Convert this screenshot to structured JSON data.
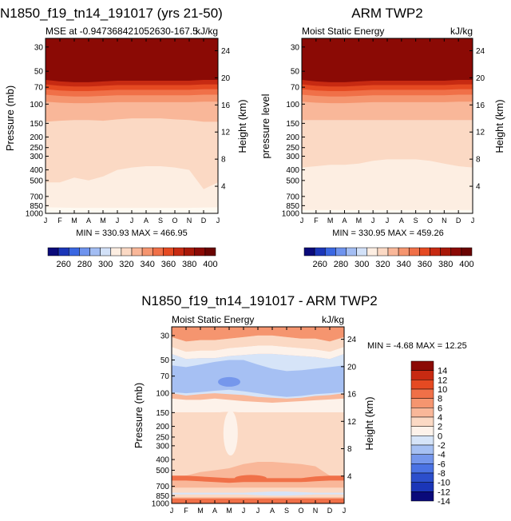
{
  "colors": {
    "contour_levels": [
      {
        "max": 330,
        "color": "#fefaf2"
      },
      {
        "max": 340,
        "color": "#fdeee2"
      },
      {
        "max": 350,
        "color": "#fbd9c4"
      },
      {
        "max": 355,
        "color": "#f9b799"
      },
      {
        "max": 360,
        "color": "#f5956f"
      },
      {
        "max": 365,
        "color": "#f07048"
      },
      {
        "max": 370,
        "color": "#e54a22"
      },
      {
        "max": 380,
        "color": "#c72a12"
      },
      {
        "max": 999,
        "color": "#8b0a05"
      }
    ],
    "mse_scale": [
      "#0a0a7a",
      "#1b36b8",
      "#3a67e2",
      "#6e93ee",
      "#a3bdf3",
      "#d2e1f8",
      "#fdeee2",
      "#fbd9c4",
      "#f9b799",
      "#f5956f",
      "#f07048",
      "#e54a22",
      "#c72a12",
      "#a81808",
      "#8b0a05",
      "#6a0402"
    ],
    "diff_scale": [
      "#0a0a7a",
      "#1b36b8",
      "#2c4fcc",
      "#4b73e4",
      "#7597ec",
      "#a6c0f3",
      "#d6e4f8",
      "#fdf2ea",
      "#fbd9c4",
      "#f9b799",
      "#f5956f",
      "#f07048",
      "#e54a22",
      "#c72a12",
      "#8b0a05"
    ]
  },
  "chart_data": [
    {
      "type": "heatmap",
      "panel": "top-left",
      "title": "N1850_f19_tn14_191017 (yrs 21-50)",
      "subtitle_left": "MSE at -0.947368421052630-167.5",
      "subtitle_right": "kJ/kg",
      "ylabel": "Pressure (mb)",
      "ylabel_right": "Height (km)",
      "x": [
        "J",
        "F",
        "M",
        "A",
        "M",
        "J",
        "J",
        "A",
        "S",
        "O",
        "N",
        "D",
        "J"
      ],
      "y_ticks": [
        30,
        50,
        70,
        100,
        150,
        200,
        250,
        300,
        400,
        500,
        700,
        850,
        1000
      ],
      "right_ticks": [
        24,
        20,
        16,
        12,
        8,
        4
      ],
      "ylim": [
        25,
        1000
      ],
      "stats": "MIN =  330.93  MAX =  466.95",
      "colorbar_labels": [
        "260",
        "280",
        "300",
        "320",
        "340",
        "360",
        "380",
        "400"
      ],
      "boundaries": [
        {
          "level": "above_380",
          "p": [
            60,
            62,
            63,
            63,
            62,
            61,
            61,
            61,
            61,
            61,
            61,
            60,
            60
          ]
        },
        {
          "level": "above_370",
          "p": [
            66,
            68,
            69,
            69,
            68,
            67,
            67,
            67,
            67,
            67,
            67,
            66,
            66
          ]
        },
        {
          "level": "above_365",
          "p": [
            73,
            75,
            76,
            76,
            75,
            74,
            74,
            74,
            74,
            74,
            74,
            73,
            73
          ]
        },
        {
          "level": "above_360",
          "p": [
            82,
            84,
            85,
            85,
            84,
            83,
            83,
            83,
            83,
            83,
            83,
            82,
            82
          ]
        },
        {
          "level": "above_355",
          "p": [
            95,
            97,
            98,
            98,
            97,
            96,
            96,
            96,
            96,
            96,
            96,
            95,
            95
          ]
        },
        {
          "level": "above_350",
          "p": [
            145,
            142,
            140,
            140,
            142,
            138,
            135,
            135,
            135,
            138,
            140,
            145,
            145
          ]
        },
        {
          "level": "above_340",
          "p": [
            520,
            520,
            470,
            500,
            460,
            400,
            380,
            370,
            370,
            380,
            400,
            600,
            520
          ]
        },
        {
          "level": "above_330",
          "p": [
            880,
            885,
            890,
            890,
            890,
            890,
            890,
            890,
            890,
            890,
            890,
            885,
            880
          ]
        }
      ]
    },
    {
      "type": "heatmap",
      "panel": "top-right",
      "title": "ARM TWP2",
      "subtitle_left": "Moist Static Energy",
      "subtitle_right": "kJ/kg",
      "ylabel": "pressure  level",
      "ylabel_right": "Height (km)",
      "x": [
        "J",
        "F",
        "M",
        "A",
        "M",
        "J",
        "J",
        "A",
        "S",
        "O",
        "N",
        "D",
        "J"
      ],
      "y_ticks": [
        30,
        50,
        70,
        100,
        150,
        200,
        250,
        300,
        400,
        500,
        700,
        850,
        1000
      ],
      "right_ticks": [
        24,
        20,
        16,
        12,
        8,
        4
      ],
      "ylim": [
        25,
        1000
      ],
      "stats": "MIN =  330.95  MAX =  459.26",
      "colorbar_labels": [
        "260",
        "280",
        "300",
        "320",
        "340",
        "360",
        "380",
        "400"
      ],
      "boundaries": [
        {
          "level": "above_380",
          "p": [
            60,
            62,
            63,
            63,
            62,
            61,
            61,
            61,
            61,
            61,
            61,
            60,
            60
          ]
        },
        {
          "level": "above_370",
          "p": [
            66,
            68,
            69,
            69,
            68,
            67,
            67,
            67,
            67,
            67,
            67,
            66,
            66
          ]
        },
        {
          "level": "above_365",
          "p": [
            73,
            75,
            76,
            76,
            75,
            74,
            74,
            74,
            74,
            74,
            74,
            73,
            73
          ]
        },
        {
          "level": "above_360",
          "p": [
            82,
            84,
            85,
            85,
            84,
            83,
            83,
            83,
            83,
            83,
            83,
            82,
            82
          ]
        },
        {
          "level": "above_355",
          "p": [
            95,
            97,
            98,
            98,
            97,
            96,
            96,
            96,
            96,
            96,
            96,
            95,
            95
          ]
        },
        {
          "level": "above_350",
          "p": [
            140,
            140,
            140,
            140,
            140,
            140,
            140,
            140,
            140,
            140,
            140,
            140,
            140
          ]
        },
        {
          "level": "above_340",
          "p": [
            380,
            370,
            360,
            360,
            350,
            330,
            320,
            320,
            320,
            330,
            350,
            370,
            380
          ]
        },
        {
          "level": "above_330",
          "p": [
            930,
            930,
            930,
            930,
            930,
            930,
            930,
            930,
            930,
            930,
            930,
            930,
            930
          ]
        }
      ]
    },
    {
      "type": "heatmap",
      "panel": "bottom-center",
      "title": "N1850_f19_tn14_191017 - ARM TWP2",
      "subtitle_left": "Moist Static Energy",
      "subtitle_right": "kJ/kg",
      "ylabel": "Pressure (mb)",
      "ylabel_right": "Height (km)",
      "x": [
        "J",
        "F",
        "M",
        "A",
        "M",
        "J",
        "J",
        "A",
        "S",
        "O",
        "N",
        "D",
        "J"
      ],
      "y_ticks": [
        30,
        50,
        70,
        100,
        150,
        200,
        250,
        300,
        400,
        500,
        700,
        850,
        1000
      ],
      "right_ticks": [
        24,
        20,
        16,
        12,
        8,
        4
      ],
      "ylim": [
        25,
        1000
      ],
      "stats": "MIN =   -4.68  MAX =   12.25",
      "colorbar_labels": [
        "14",
        "12",
        "10",
        "8",
        "6",
        "4",
        "2",
        "0",
        "-2",
        "-4",
        "-6",
        "-8",
        "-10",
        "-12",
        "-14"
      ],
      "base_color": "#f9b799",
      "regions": [
        {
          "level": "6_to_8",
          "p_top": [
            25,
            25,
            25,
            25,
            25,
            25,
            25,
            25,
            25,
            25,
            25,
            25,
            25
          ],
          "p_bot": [
            31,
            34,
            33,
            33,
            32,
            31,
            30,
            30,
            31,
            32,
            32,
            34,
            31
          ]
        },
        {
          "level": "2_to_4",
          "p_top": [
            31,
            34,
            33,
            33,
            32,
            31,
            30,
            30,
            31,
            32,
            32,
            34,
            31
          ],
          "p_bot": [
            38,
            42,
            41,
            41,
            39,
            38,
            37,
            37,
            38,
            39,
            40,
            42,
            38
          ]
        },
        {
          "level": "0_to_2",
          "p_top": [
            38,
            42,
            41,
            41,
            39,
            38,
            37,
            37,
            38,
            39,
            40,
            42,
            38
          ],
          "p_bot": [
            44,
            49,
            48,
            48,
            46,
            45,
            44,
            44,
            45,
            46,
            47,
            49,
            44
          ]
        },
        {
          "level": "-2_to_0",
          "p_top": [
            44,
            49,
            48,
            48,
            46,
            45,
            44,
            44,
            45,
            46,
            47,
            49,
            44
          ],
          "p_bot": [
            100,
            105,
            102,
            100,
            102,
            104,
            108,
            110,
            112,
            110,
            106,
            104,
            100
          ]
        },
        {
          "level": "-4_to_-2",
          "p_top": [
            56,
            58,
            55,
            52,
            50,
            50,
            55,
            60,
            63,
            62,
            60,
            58,
            56
          ],
          "p_bot": [
            98,
            100,
            98,
            95,
            93,
            96,
            100,
            105,
            108,
            106,
            102,
            100,
            98
          ]
        },
        {
          "level": "0_to_2",
          "p_top": [
            112,
            115,
            115,
            112,
            115,
            118,
            120,
            122,
            120,
            118,
            116,
            114,
            112
          ],
          "p_bot": [
            150,
            150,
            150,
            150,
            148,
            150,
            150,
            150,
            150,
            150,
            150,
            150,
            150
          ]
        },
        {
          "level": "2_to_4",
          "p_top": [
            150,
            150,
            150,
            150,
            148,
            150,
            150,
            150,
            150,
            150,
            150,
            150,
            150
          ],
          "p_bot": [
            580,
            560,
            520,
            500,
            480,
            440,
            420,
            420,
            430,
            440,
            460,
            560,
            580
          ]
        },
        {
          "level": "8_to_10",
          "p_top": [
            560,
            560,
            570,
            580,
            590,
            590,
            590,
            590,
            590,
            590,
            570,
            560,
            560
          ],
          "p_bot": [
            620,
            620,
            630,
            640,
            650,
            640,
            640,
            640,
            640,
            640,
            630,
            620,
            620
          ]
        },
        {
          "level": "2_to_4",
          "p_top": [
            720,
            720,
            720,
            720,
            720,
            720,
            720,
            720,
            720,
            720,
            720,
            720,
            720
          ],
          "p_bot": [
            880,
            880,
            880,
            880,
            880,
            880,
            880,
            880,
            880,
            880,
            880,
            880,
            880
          ]
        },
        {
          "level": "-2_to_0",
          "p_top": [
            800,
            800,
            800,
            800,
            800,
            800,
            790,
            780,
            780,
            790,
            800,
            800,
            800
          ],
          "p_bot": [
            830,
            830,
            830,
            830,
            830,
            830,
            840,
            850,
            850,
            840,
            830,
            830,
            830
          ]
        },
        {
          "level": "8_to_10",
          "p_top": [
            900,
            900,
            900,
            900,
            900,
            900,
            900,
            900,
            900,
            900,
            900,
            900,
            900
          ],
          "p_bot": [
            1000,
            1000,
            1000,
            1000,
            1000,
            1000,
            1000,
            1000,
            1000,
            1000,
            1000,
            1000,
            1000
          ]
        }
      ]
    }
  ]
}
